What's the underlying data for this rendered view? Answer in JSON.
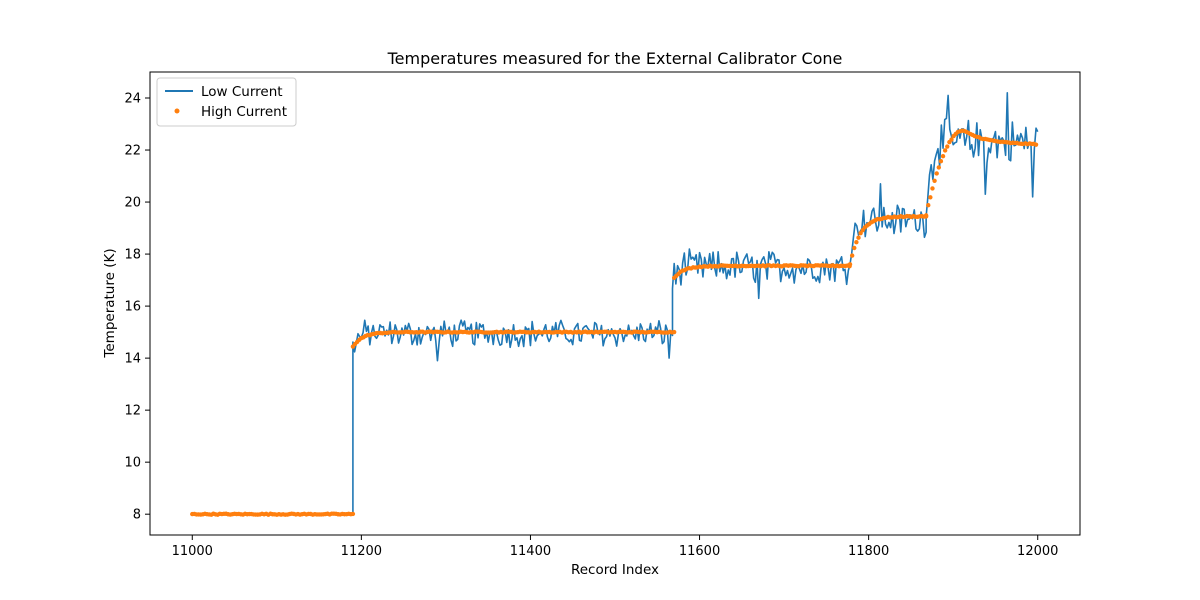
{
  "chart_data": {
    "type": "line",
    "title": "Temperatures measured for the External Calibrator Cone",
    "xlabel": "Record Index",
    "ylabel": "Temperature (K)",
    "xlim": [
      10950,
      12050
    ],
    "ylim": [
      7.2,
      25
    ],
    "x_ticks": [
      11000,
      11200,
      11400,
      11600,
      11800,
      12000
    ],
    "y_ticks": [
      8,
      10,
      12,
      14,
      16,
      18,
      20,
      22,
      24
    ],
    "x_tick_labels": [
      "11000",
      "11200",
      "11400",
      "11600",
      "11800",
      "12000"
    ],
    "y_tick_labels": [
      "8",
      "10",
      "12",
      "14",
      "16",
      "18",
      "20",
      "22",
      "24"
    ],
    "grid": false,
    "legend_position": "top-left",
    "series": [
      {
        "name": "Low Current",
        "style": "line",
        "color": "#1f77b4",
        "x_start": 11000,
        "x_end": 12000,
        "segments": [
          {
            "from": 11000,
            "to": 11190,
            "level": 8.0,
            "noise": 0.03
          },
          {
            "from": 11190,
            "to": 11568,
            "level": 14.95,
            "noise": 0.45,
            "start": 14.5
          },
          {
            "from": 11568,
            "to": 11778,
            "level": 17.5,
            "noise": 0.55,
            "start": 17.0
          },
          {
            "from": 11778,
            "to": 11868,
            "level": 19.3,
            "noise": 0.55,
            "start": 18.3
          },
          {
            "from": 11868,
            "to": 12000,
            "level": 22.3,
            "noise": 0.75,
            "start": 20.0
          }
        ],
        "spikes": [
          {
            "x": 11895,
            "y": 24.1
          },
          {
            "x": 11965,
            "y": 24.2
          },
          {
            "x": 11938,
            "y": 20.3
          },
          {
            "x": 11995,
            "y": 20.2
          },
          {
            "x": 11290,
            "y": 13.9
          },
          {
            "x": 11565,
            "y": 14.0
          },
          {
            "x": 11670,
            "y": 16.3
          },
          {
            "x": 11815,
            "y": 20.7
          }
        ]
      },
      {
        "name": "High Current",
        "style": "scatter",
        "color": "#ff7f0e",
        "x_start": 11000,
        "x_end": 12000,
        "segments": [
          {
            "from": 11000,
            "to": 11190,
            "level": 8.0
          },
          {
            "from": 11190,
            "to": 11570,
            "level": 15.0,
            "start": 14.45
          },
          {
            "from": 11570,
            "to": 11778,
            "level": 17.55,
            "start": 17.1
          },
          {
            "from": 11778,
            "to": 11868,
            "level": 19.45,
            "start": 17.6
          },
          {
            "from": 11868,
            "to": 12000,
            "level": 22.2,
            "start": 19.5,
            "peak": 22.75,
            "peak_x": 11912
          }
        ]
      }
    ]
  }
}
